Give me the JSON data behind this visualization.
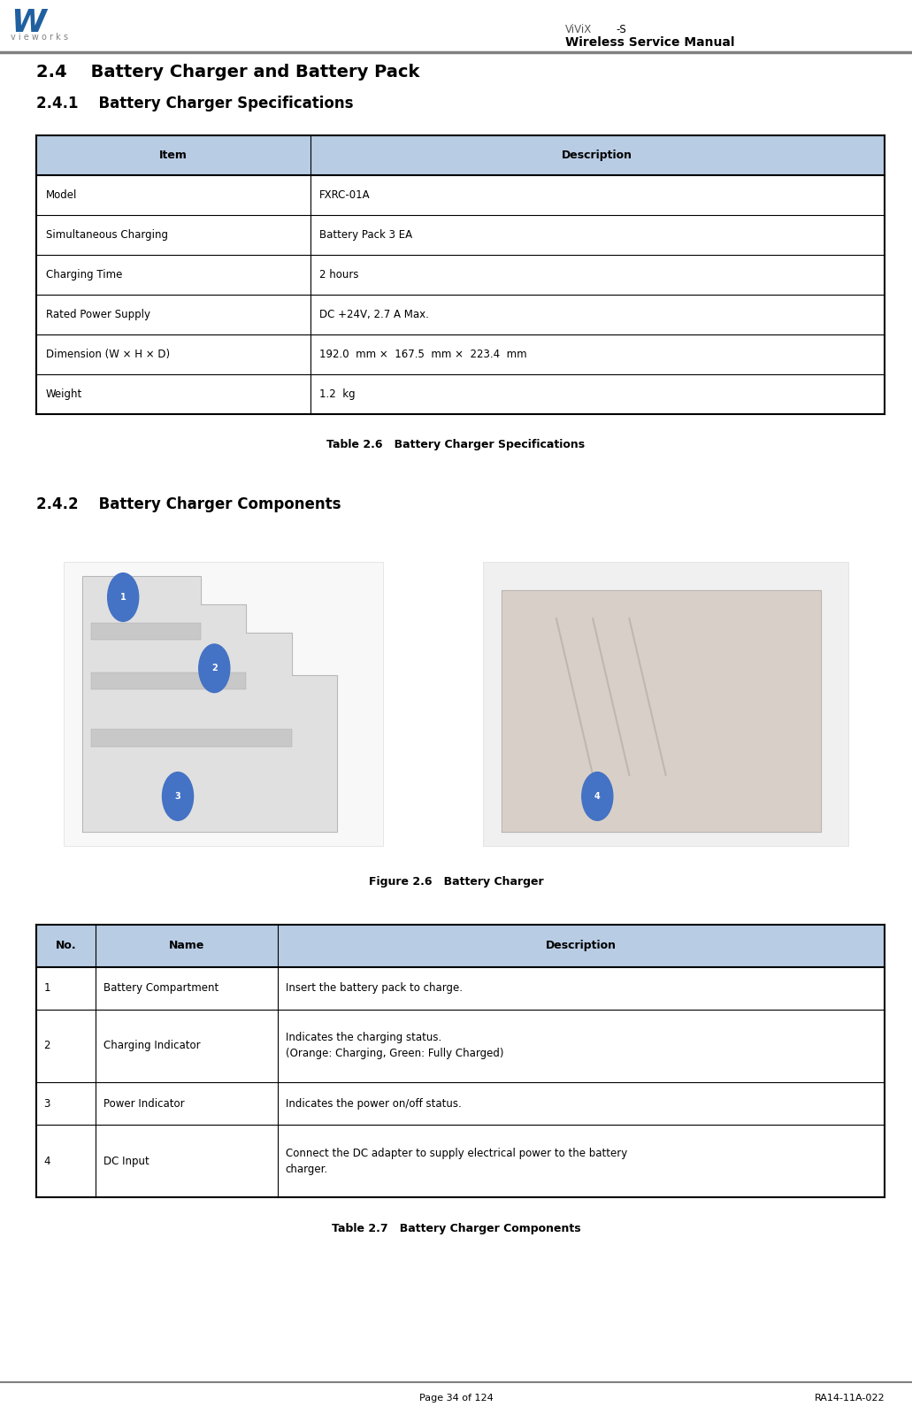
{
  "page_width": 10.31,
  "page_height": 16.07,
  "bg_color": "#ffffff",
  "header_line_color": "#808080",
  "header_logo_text": "vieworks",
  "header_right_text": "Wireless Service Manual",
  "section_title1": "2.4    Battery Charger and Battery Pack",
  "section_title2": "2.4.1    Battery Charger Specifications",
  "section_title3": "2.4.2    Battery Charger Components",
  "table1_header": [
    "Item",
    "Description"
  ],
  "table1_header_bg": "#b8cce4",
  "table1_rows": [
    [
      "Model",
      "FXRC-01A"
    ],
    [
      "Simultaneous Charging",
      "Battery Pack 3 EA"
    ],
    [
      "Charging Time",
      "2 hours"
    ],
    [
      "Rated Power Supply",
      "DC +24V, 2.7 A Max."
    ],
    [
      "Dimension (W × H × D)",
      "192.0  mm ×  167.5  mm ×  223.4  mm"
    ],
    [
      "Weight",
      "1.2  kg"
    ]
  ],
  "table1_caption": "Table 2.6   Battery Charger Specifications",
  "figure_caption": "Figure 2.6   Battery Charger",
  "table2_header": [
    "No.",
    "Name",
    "Description"
  ],
  "table2_header_bg": "#b8cce4",
  "table2_rows": [
    [
      "1",
      "Battery Compartment",
      "Insert the battery pack to charge."
    ],
    [
      "2",
      "Charging Indicator",
      "Indicates the charging status.\n(Orange: Charging, Green: Fully Charged)"
    ],
    [
      "3",
      "Power Indicator",
      "Indicates the power on/off status."
    ],
    [
      "4",
      "DC Input",
      "Connect the DC adapter to supply electrical power to the battery\ncharger."
    ]
  ],
  "table2_caption": "Table 2.7   Battery Charger Components",
  "footer_left": "Page 34 of 124",
  "footer_right": "RA14-11A-022",
  "text_color": "#000000",
  "table_border_color": "#000000"
}
